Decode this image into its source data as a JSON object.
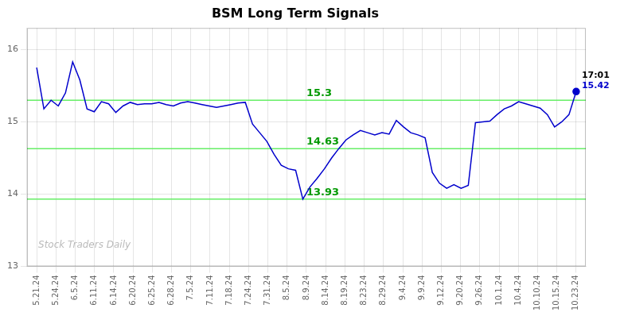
{
  "chart_data": {
    "type": "line",
    "title": "BSM Long Term Signals",
    "x": [
      0,
      0.3733,
      0.7467,
      1.12,
      1.4933,
      1.8667,
      2.24,
      2.6133,
      2.9867,
      3.36,
      3.7333,
      4.1067,
      4.48,
      4.8533,
      5.2267,
      5.6,
      5.9733,
      6.3467,
      6.72,
      7.0933,
      7.4667,
      7.84,
      8.2133,
      8.5867,
      8.96,
      9.3333,
      9.7067,
      10.08,
      10.4533,
      10.8267,
      11.2,
      11.5733,
      11.9467,
      12.32,
      12.6933,
      13.0667,
      13.44,
      13.8133,
      14.1867,
      14.56,
      14.9333,
      15.3067,
      15.68,
      16.0533,
      16.4267,
      16.8,
      17.1733,
      17.5467,
      17.92,
      18.2933,
      18.6667,
      19.04,
      19.4133,
      19.7867,
      20.16,
      20.5333,
      20.9067,
      21.28,
      21.6533,
      22.0267,
      22.4,
      22.7733,
      23.1467,
      23.52,
      23.8933,
      24.2667,
      24.64,
      25.0133,
      25.3867,
      25.76,
      26.1333,
      26.5067,
      26.88,
      27.2533,
      27.6267,
      28
    ],
    "values": [
      15.75,
      15.18,
      15.3,
      15.22,
      15.4,
      15.83,
      15.58,
      15.18,
      15.14,
      15.28,
      15.25,
      15.13,
      15.22,
      15.27,
      15.24,
      15.25,
      15.25,
      15.27,
      15.24,
      15.22,
      15.26,
      15.28,
      15.26,
      15.24,
      15.22,
      15.2,
      15.22,
      15.24,
      15.26,
      15.27,
      14.97,
      14.85,
      14.73,
      14.55,
      14.4,
      14.35,
      14.33,
      13.93,
      14.1,
      14.22,
      14.35,
      14.5,
      14.63,
      14.75,
      14.82,
      14.88,
      14.85,
      14.82,
      14.85,
      14.83,
      15.02,
      14.93,
      14.85,
      14.82,
      14.78,
      14.3,
      14.15,
      14.08,
      14.13,
      14.08,
      14.12,
      14.99,
      15.0,
      15.01,
      15.1,
      15.18,
      15.22,
      15.28,
      15.25,
      15.22,
      15.19,
      15.1,
      14.93,
      15.0,
      15.1,
      15.42
    ],
    "color": "#0000cc",
    "xlim": [
      -0.5,
      28.5
    ],
    "xticks": [
      {
        "value": 0,
        "label": "5.21.24"
      },
      {
        "value": 1,
        "label": "5.24.24"
      },
      {
        "value": 2,
        "label": "6.5.24"
      },
      {
        "value": 3,
        "label": "6.11.24"
      },
      {
        "value": 4,
        "label": "6.14.24"
      },
      {
        "value": 5,
        "label": "6.20.24"
      },
      {
        "value": 6,
        "label": "6.25.24"
      },
      {
        "value": 7,
        "label": "6.28.24"
      },
      {
        "value": 8,
        "label": "7.5.24"
      },
      {
        "value": 9,
        "label": "7.11.24"
      },
      {
        "value": 10,
        "label": "7.18.24"
      },
      {
        "value": 11,
        "label": "7.24.24"
      },
      {
        "value": 12,
        "label": "7.31.24"
      },
      {
        "value": 13,
        "label": "8.5.24"
      },
      {
        "value": 14,
        "label": "8.9.24"
      },
      {
        "value": 15,
        "label": "8.14.24"
      },
      {
        "value": 16,
        "label": "8.19.24"
      },
      {
        "value": 17,
        "label": "8.23.24"
      },
      {
        "value": 18,
        "label": "8.29.24"
      },
      {
        "value": 19,
        "label": "9.4.24"
      },
      {
        "value": 20,
        "label": "9.9.24"
      },
      {
        "value": 21,
        "label": "9.12.24"
      },
      {
        "value": 22,
        "label": "9.20.24"
      },
      {
        "value": 23,
        "label": "9.26.24"
      },
      {
        "value": 24,
        "label": "10.1.24"
      },
      {
        "value": 25,
        "label": "10.4.24"
      },
      {
        "value": 26,
        "label": "10.10.24"
      },
      {
        "value": 27,
        "label": "10.15.24"
      },
      {
        "value": 28,
        "label": "10.23.24"
      }
    ],
    "ylim": [
      13.0,
      16.3
    ],
    "yticks": [
      13,
      14,
      15,
      16
    ],
    "grid": true,
    "hlines": [
      {
        "value": 15.3,
        "label": "15.3",
        "color": "#66ee66",
        "label_color": "#009900"
      },
      {
        "value": 14.63,
        "label": "14.63",
        "color": "#66ee66",
        "label_color": "#009900"
      },
      {
        "value": 13.93,
        "label": "13.93",
        "color": "#66ee66",
        "label_color": "#009900"
      }
    ],
    "last_point": {
      "labels": [
        "17:01",
        "15.42"
      ],
      "color": "#0000cc",
      "marker": "circle"
    },
    "watermark": "Stock Traders Daily"
  }
}
